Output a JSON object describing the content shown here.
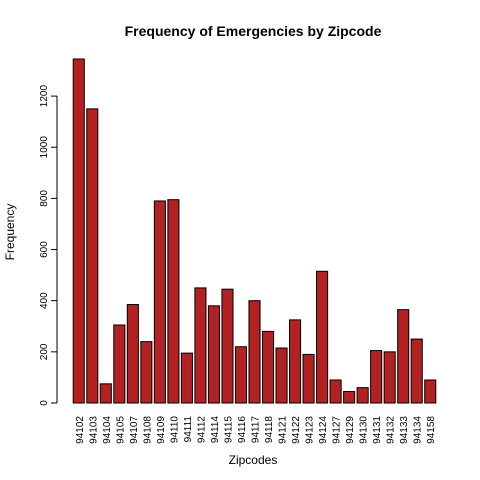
{
  "chart_data": {
    "type": "bar",
    "title": "Frequency of Emergencies by Zipcode",
    "xlabel": "Zipcodes",
    "ylabel": "Frequency",
    "categories": [
      "94102",
      "94103",
      "94104",
      "94105",
      "94107",
      "94108",
      "94109",
      "94110",
      "94111",
      "94112",
      "94114",
      "94115",
      "94116",
      "94117",
      "94118",
      "94121",
      "94122",
      "94123",
      "94124",
      "94127",
      "94129",
      "94130",
      "94131",
      "94132",
      "94133",
      "94134",
      "94158"
    ],
    "values": [
      1345,
      1150,
      75,
      305,
      385,
      240,
      790,
      795,
      195,
      450,
      380,
      445,
      220,
      400,
      280,
      215,
      325,
      190,
      515,
      90,
      45,
      60,
      205,
      200,
      365,
      250,
      90
    ],
    "ylim": [
      0,
      1345
    ],
    "yticks": [
      0,
      200,
      400,
      600,
      800,
      1000,
      1200
    ],
    "grid": false,
    "bar_color": "#b22222",
    "bar_border_color": "#000000"
  }
}
